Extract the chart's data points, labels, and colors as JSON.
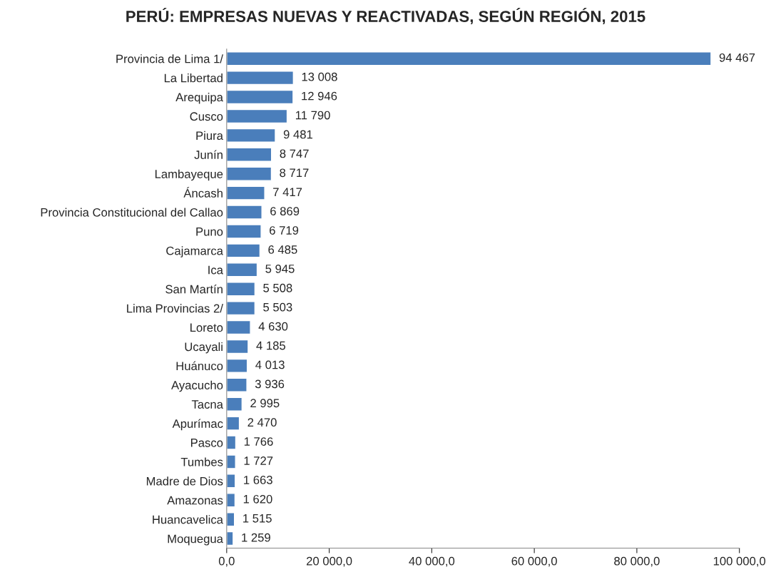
{
  "chart_data": {
    "type": "bar",
    "orientation": "horizontal",
    "title": "PERÚ: EMPRESAS NUEVAS Y REACTIVADAS, SEGÚN REGIÓN, 2015",
    "categories": [
      "Provincia de Lima 1/",
      "La Libertad",
      "Arequipa",
      "Cusco",
      "Piura",
      "Junín",
      "Lambayeque",
      "Áncash",
      "Provincia Constitucional del Callao",
      "Puno",
      "Cajamarca",
      "Ica",
      "San Martín",
      "Lima Provincias 2/",
      "Loreto",
      "Ucayali",
      "Huánuco",
      "Ayacucho",
      "Tacna",
      "Apurímac",
      "Pasco",
      "Tumbes",
      "Madre de Dios",
      "Amazonas",
      "Huancavelica",
      "Moquegua"
    ],
    "values": [
      94467,
      13008,
      12946,
      11790,
      9481,
      8747,
      8717,
      7417,
      6869,
      6719,
      6485,
      5945,
      5508,
      5503,
      4630,
      4185,
      4013,
      3936,
      2995,
      2470,
      1766,
      1727,
      1663,
      1620,
      1515,
      1259
    ],
    "value_labels": [
      "94 467",
      "13 008",
      "12 946",
      "11 790",
      "9 481",
      "8 747",
      "8 717",
      "7 417",
      "6 869",
      "6 719",
      "6 485",
      "5 945",
      "5 508",
      "5 503",
      "4 630",
      "4 185",
      "4 013",
      "3 936",
      "2 995",
      "2 470",
      "1 766",
      "1 727",
      "1 663",
      "1 620",
      "1 515",
      "1 259"
    ],
    "color": "#4a7ebb",
    "xlim": [
      0,
      100000
    ],
    "xticks": [
      {
        "value": 0,
        "label": "0,0"
      },
      {
        "value": 20000,
        "label": "20 000,0"
      },
      {
        "value": 40000,
        "label": "40 000,0"
      },
      {
        "value": 60000,
        "label": "60 000,0"
      },
      {
        "value": 80000,
        "label": "80 000,0"
      },
      {
        "value": 100000,
        "label": "100 000,0"
      }
    ],
    "grid": false,
    "legend": false
  }
}
